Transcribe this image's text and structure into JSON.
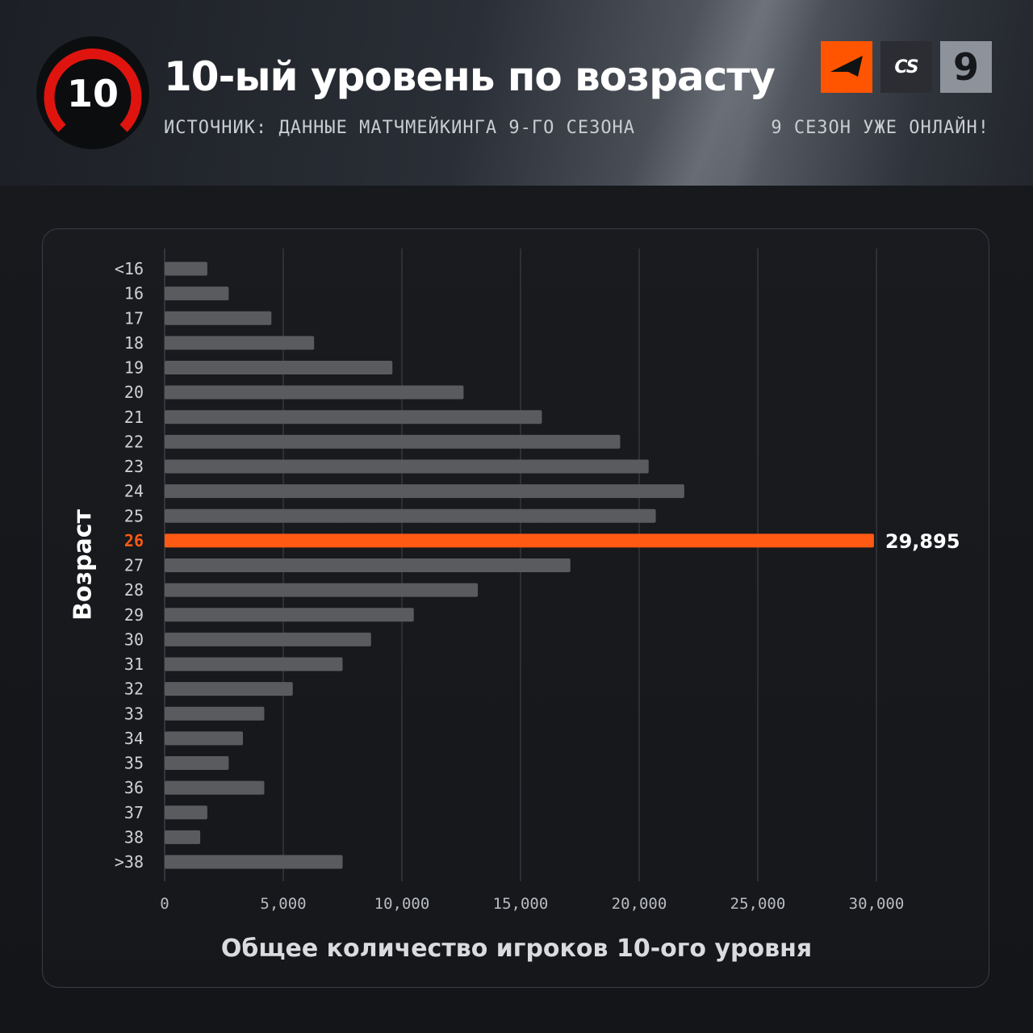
{
  "header": {
    "title": "10-ый уровень по возрасту",
    "subtitle": "ИСТОЧНИК: ДАННЫЕ МАТЧМЕЙКИНГА 9-ГО СЕЗОНА",
    "tagline": "9 СЕЗОН УЖЕ ОНЛАЙН!",
    "level_badge": "10",
    "logos": {
      "cs_text": "CS",
      "season_text": "9"
    }
  },
  "colors": {
    "background": "#15171b",
    "bar": "#5a5b5e",
    "highlight": "#ff5a14",
    "badge_red": "#e0140f"
  },
  "chart_data": {
    "type": "bar",
    "orientation": "horizontal",
    "categories": [
      "<16",
      "16",
      "17",
      "18",
      "19",
      "20",
      "21",
      "22",
      "23",
      "24",
      "25",
      "26",
      "27",
      "28",
      "29",
      "30",
      "31",
      "32",
      "33",
      "34",
      "35",
      "36",
      "37",
      "38",
      ">38"
    ],
    "values": [
      1800,
      2700,
      4500,
      6300,
      9600,
      12600,
      15900,
      19200,
      20400,
      21900,
      20700,
      29895,
      17100,
      13200,
      10500,
      8700,
      7500,
      5400,
      4200,
      3300,
      2700,
      4200,
      1800,
      1500,
      7500
    ],
    "highlight_category": "26",
    "highlight_label": "29,895",
    "xlabel": "Общее количество игроков 10-ого уровня",
    "ylabel": "Возраст",
    "xlim": [
      0,
      30000
    ],
    "xticks": [
      0,
      5000,
      10000,
      15000,
      20000,
      25000,
      30000
    ],
    "xtick_labels": [
      "0",
      "5,000",
      "10,000",
      "15,000",
      "20,000",
      "25,000",
      "30,000"
    ],
    "grid": "vertical"
  }
}
